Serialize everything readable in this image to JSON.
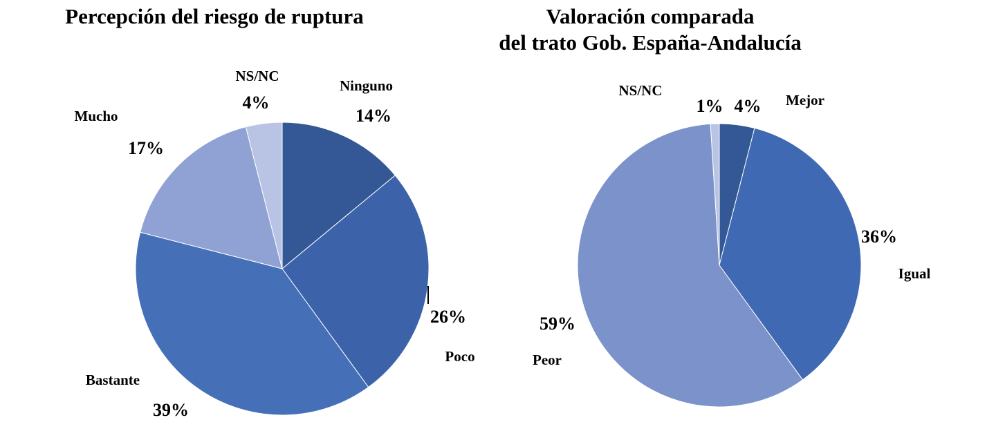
{
  "chart_data": [
    {
      "type": "pie",
      "title": "Percepción del riesgo de ruptura",
      "slices": [
        {
          "label": "Ninguno",
          "value": 14,
          "value_label": "14%",
          "color": "#335895"
        },
        {
          "label": "Poco",
          "value": 26,
          "value_label": "26%",
          "color": "#3C63AA"
        },
        {
          "label": "Bastante",
          "value": 39,
          "value_label": "39%",
          "color": "#4570B7"
        },
        {
          "label": "Mucho",
          "value": 17,
          "value_label": "17%",
          "color": "#8FA2D3"
        },
        {
          "label": "NS/NC",
          "value": 4,
          "value_label": "4%",
          "color": "#B9C4E4"
        }
      ]
    },
    {
      "type": "pie",
      "title": "Valoración comparada del trato Gob. España-Andalucía",
      "title_lines": [
        "Valoración comparada",
        "del trato Gob. España-Andalucía"
      ],
      "slices": [
        {
          "label": "Mejor",
          "value": 4,
          "value_label": "4%",
          "color": "#335895"
        },
        {
          "label": "Igual",
          "value": 36,
          "value_label": "36%",
          "color": "#3F69B2"
        },
        {
          "label": "Peor",
          "value": 59,
          "value_label": "59%",
          "color": "#7B92CA"
        },
        {
          "label": "NS/NC",
          "value": 1,
          "value_label": "1%",
          "color": "#B9C4E4"
        }
      ]
    }
  ]
}
